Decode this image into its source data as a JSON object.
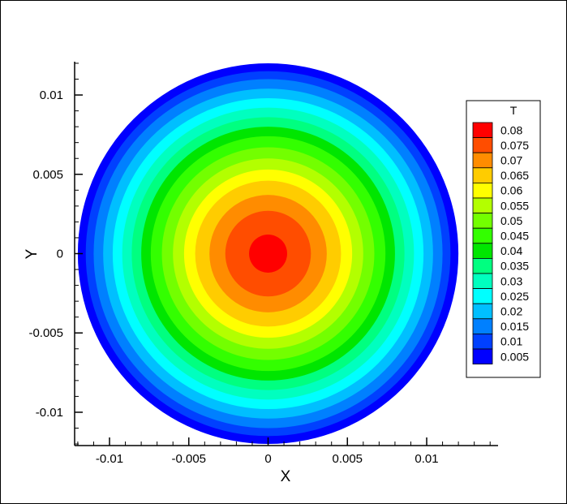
{
  "chart_data": {
    "type": "contour",
    "title": "",
    "xlabel": "X",
    "ylabel": "Y",
    "xlim": [
      -0.0122,
      0.0145
    ],
    "ylim": [
      -0.0121,
      0.0121
    ],
    "xticks": [
      -0.01,
      -0.005,
      0,
      0.005,
      0.01
    ],
    "xtick_labels": [
      "-0.01",
      "-0.005",
      "0",
      "0.005",
      "0.01"
    ],
    "yticks": [
      -0.01,
      -0.005,
      0,
      0.005,
      0.01
    ],
    "ytick_labels": [
      "-0.01",
      "-0.005",
      "0",
      "0.005",
      "0.01"
    ],
    "domain": {
      "shape": "circle",
      "center": [
        0,
        0
      ],
      "radius": 0.012
    },
    "field": "T",
    "legend": {
      "title": "T",
      "placement": "right",
      "levels": [
        {
          "value": 0.08,
          "label": "0.08",
          "color": "#ff0000"
        },
        {
          "value": 0.075,
          "label": "0.075",
          "color": "#ff4d00"
        },
        {
          "value": 0.07,
          "label": "0.07",
          "color": "#ff8c00"
        },
        {
          "value": 0.065,
          "label": "0.065",
          "color": "#ffcc00"
        },
        {
          "value": 0.06,
          "label": "0.06",
          "color": "#ffff00"
        },
        {
          "value": 0.055,
          "label": "0.055",
          "color": "#b3ff00"
        },
        {
          "value": 0.05,
          "label": "0.05",
          "color": "#73ff00"
        },
        {
          "value": 0.045,
          "label": "0.045",
          "color": "#33ff00"
        },
        {
          "value": 0.04,
          "label": "0.04",
          "color": "#00e600"
        },
        {
          "value": 0.035,
          "label": "0.035",
          "color": "#00ff80"
        },
        {
          "value": 0.03,
          "label": "0.03",
          "color": "#00ffbf"
        },
        {
          "value": 0.025,
          "label": "0.025",
          "color": "#00ffff"
        },
        {
          "value": 0.02,
          "label": "0.02",
          "color": "#00bfff"
        },
        {
          "value": 0.015,
          "label": "0.015",
          "color": "#0080ff"
        },
        {
          "value": 0.01,
          "label": "0.01",
          "color": "#0040ff"
        },
        {
          "value": 0.005,
          "label": "0.005",
          "color": "#0000ff"
        }
      ]
    },
    "contour_bands": [
      {
        "outer_radius": 0.012,
        "color": "#0000ff"
      },
      {
        "outer_radius": 0.0115,
        "color": "#0040ff"
      },
      {
        "outer_radius": 0.011,
        "color": "#0080ff"
      },
      {
        "outer_radius": 0.0104,
        "color": "#00bfff"
      },
      {
        "outer_radius": 0.0098,
        "color": "#00ffff"
      },
      {
        "outer_radius": 0.0092,
        "color": "#00ffbf"
      },
      {
        "outer_radius": 0.0086,
        "color": "#00ff80"
      },
      {
        "outer_radius": 0.008,
        "color": "#00e600"
      },
      {
        "outer_radius": 0.0074,
        "color": "#33ff00"
      },
      {
        "outer_radius": 0.0067,
        "color": "#73ff00"
      },
      {
        "outer_radius": 0.006,
        "color": "#b3ff00"
      },
      {
        "outer_radius": 0.0053,
        "color": "#ffff00"
      },
      {
        "outer_radius": 0.0046,
        "color": "#ffcc00"
      },
      {
        "outer_radius": 0.0037,
        "color": "#ff8c00"
      },
      {
        "outer_radius": 0.0027,
        "color": "#ff4d00"
      },
      {
        "outer_radius": 0.0012,
        "color": "#ff0000"
      }
    ]
  }
}
